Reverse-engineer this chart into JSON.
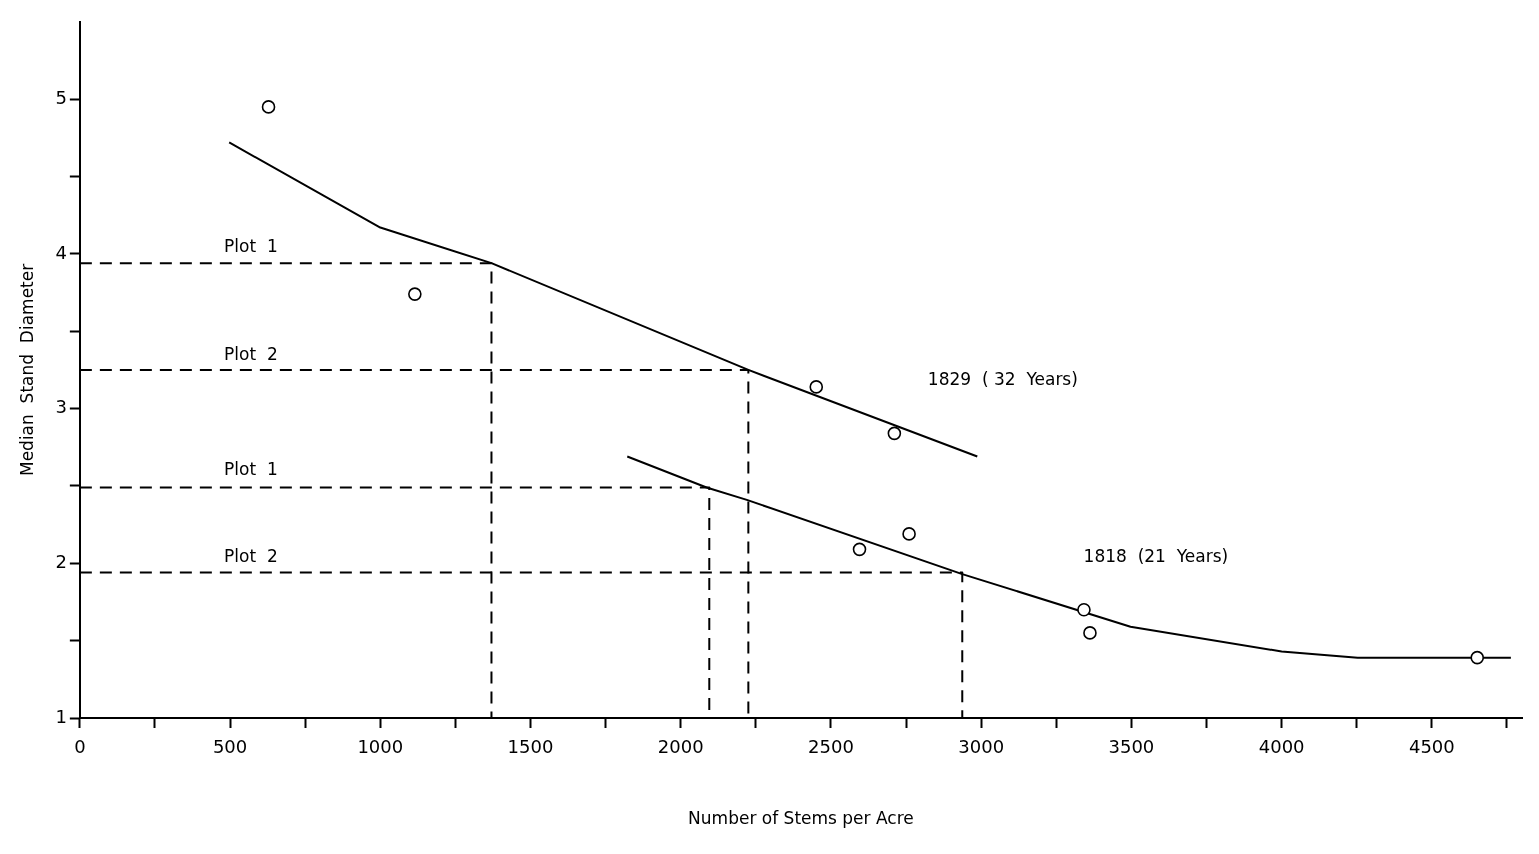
{
  "chart_data": {
    "type": "scatter",
    "xlabel": "Number of Stems per Acre",
    "ylabel": "Median  Stand  Diameter",
    "xlim": [
      0,
      4800
    ],
    "ylim": [
      1,
      5.5
    ],
    "xticks": [
      0,
      {
        "value": 250,
        "label": null
      },
      500,
      {
        "value": 750,
        "label": null
      },
      1000,
      {
        "value": 1250,
        "label": null
      },
      1500,
      {
        "value": 1750,
        "label": null
      },
      2000,
      {
        "value": 2250,
        "label": null
      },
      2500,
      {
        "value": 2750,
        "label": null
      },
      3000,
      {
        "value": 3250,
        "label": null
      },
      3500,
      {
        "value": 3750,
        "label": null
      },
      4000,
      {
        "value": 4250,
        "label": null
      },
      4500,
      {
        "value": 4750,
        "label": null
      }
    ],
    "yticks": [
      1,
      {
        "value": 1.5,
        "label": null
      },
      2,
      {
        "value": 2.5,
        "label": null
      },
      3,
      {
        "value": 3.5,
        "label": null
      },
      4,
      {
        "value": 4.5,
        "label": null
      },
      5
    ],
    "grid": false,
    "legend": false,
    "marker": "circle",
    "annotations": [
      "Plot  1",
      "Plot  2",
      "Plot  1",
      "Plot  2",
      "1829  ( 32  Years)",
      "1818  (21  Years)"
    ],
    "series": [
      {
        "type": "scatter",
        "color": "#000000",
        "x": [
          628,
          1115,
          2451,
          2711,
          2595,
          2760,
          3342,
          3362,
          4651
        ],
        "values": [
          4.95,
          3.74,
          3.14,
          2.84,
          2.09,
          2.19,
          1.7,
          1.55,
          1.39
        ]
      },
      {
        "type": "line",
        "marker": "none",
        "color": "#000000",
        "x": [
          497,
          1000,
          1370,
          2225,
          2987
        ],
        "values": [
          4.72,
          4.17,
          3.94,
          3.25,
          2.69
        ]
      },
      {
        "type": "line",
        "marker": "none",
        "color": "#000000",
        "x": [
          1822,
          2086,
          2220,
          2937,
          3497,
          4000,
          4253,
          4763
        ],
        "values": [
          2.69,
          2.49,
          2.41,
          1.93,
          1.59,
          1.43,
          1.39,
          1.39
        ]
      },
      {
        "type": "line",
        "marker": "none",
        "line_style": "dashed",
        "color": "#000000",
        "x": [
          0,
          1370,
          1370
        ],
        "values": [
          3.94,
          3.94,
          1
        ]
      },
      {
        "type": "line",
        "marker": "none",
        "line_style": "dashed",
        "color": "#000000",
        "x": [
          0,
          2225,
          2225
        ],
        "values": [
          3.25,
          3.25,
          1
        ]
      },
      {
        "type": "line",
        "marker": "none",
        "line_style": "dashed",
        "color": "#000000",
        "x": [
          0,
          2095,
          2095
        ],
        "values": [
          2.49,
          2.49,
          1
        ]
      },
      {
        "type": "line",
        "marker": "none",
        "line_style": "dashed",
        "color": "#000000",
        "x": [
          0,
          2937,
          2937
        ],
        "values": [
          1.94,
          1.94,
          1
        ]
      }
    ]
  }
}
